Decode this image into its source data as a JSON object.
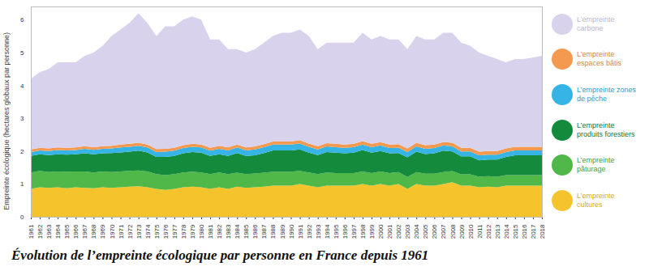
{
  "chart_data": {
    "type": "area",
    "title": "Évolution de l’empreinte écologique par personne en France depuis 1961",
    "y_label": "Empreinte écologique (hectares globaux par personne)",
    "stacked": true,
    "grid": false,
    "legend": "right",
    "x": [
      1961,
      1962,
      1963,
      1964,
      1965,
      1966,
      1967,
      1968,
      1969,
      1970,
      1971,
      1972,
      1973,
      1974,
      1975,
      1976,
      1977,
      1978,
      1979,
      1980,
      1981,
      1982,
      1983,
      1984,
      1985,
      1986,
      1987,
      1988,
      1989,
      1990,
      1991,
      1992,
      1993,
      1994,
      1995,
      1996,
      1997,
      1998,
      1999,
      2000,
      2001,
      2002,
      2003,
      2004,
      2005,
      2006,
      2007,
      2008,
      2009,
      2010,
      2011,
      2012,
      2013,
      2014,
      2015,
      2016,
      2017,
      2018
    ],
    "xlim": [
      1961,
      2018
    ],
    "xticks": [
      1961,
      1962,
      1963,
      1964,
      1965,
      1966,
      1967,
      1968,
      1969,
      1970,
      1971,
      1972,
      1973,
      1974,
      1975,
      1976,
      1977,
      1978,
      1979,
      1980,
      1981,
      1982,
      1983,
      1984,
      1985,
      1986,
      1987,
      1988,
      1989,
      1990,
      1991,
      1992,
      1993,
      1994,
      1995,
      1996,
      1997,
      1998,
      1999,
      2000,
      2001,
      2002,
      2003,
      2004,
      2005,
      2006,
      2007,
      2008,
      2009,
      2010,
      2011,
      2012,
      2013,
      2014,
      2015,
      2016,
      2017,
      2018
    ],
    "ylim": [
      0,
      6.4
    ],
    "yticks": [
      0,
      1,
      2,
      3,
      4,
      5,
      6
    ],
    "series": [
      {
        "name": "L’empreinte cultures",
        "color": "#f5c42c",
        "values": [
          0.85,
          0.9,
          0.88,
          0.9,
          0.87,
          0.9,
          0.88,
          0.87,
          0.9,
          0.88,
          0.9,
          0.92,
          0.93,
          0.9,
          0.85,
          0.82,
          0.85,
          0.9,
          0.92,
          0.9,
          0.85,
          0.9,
          0.85,
          0.92,
          0.88,
          0.9,
          0.92,
          0.95,
          0.95,
          0.95,
          1.0,
          0.95,
          0.9,
          0.95,
          0.95,
          0.95,
          0.95,
          1.0,
          0.95,
          1.0,
          0.95,
          1.0,
          0.85,
          1.0,
          0.95,
          0.95,
          1.0,
          1.05,
          0.95,
          0.95,
          0.9,
          0.92,
          0.9,
          0.95,
          0.95,
          0.95,
          0.95,
          0.95
        ]
      },
      {
        "name": "L’empreinte pâturage",
        "color": "#4fb848",
        "values": [
          0.5,
          0.5,
          0.48,
          0.48,
          0.5,
          0.48,
          0.5,
          0.48,
          0.48,
          0.48,
          0.48,
          0.48,
          0.48,
          0.48,
          0.45,
          0.45,
          0.45,
          0.45,
          0.45,
          0.45,
          0.45,
          0.45,
          0.45,
          0.42,
          0.42,
          0.42,
          0.42,
          0.42,
          0.42,
          0.42,
          0.4,
          0.4,
          0.4,
          0.4,
          0.38,
          0.38,
          0.38,
          0.38,
          0.38,
          0.38,
          0.38,
          0.36,
          0.36,
          0.36,
          0.36,
          0.36,
          0.36,
          0.34,
          0.34,
          0.34,
          0.32,
          0.32,
          0.32,
          0.32,
          0.32,
          0.32,
          0.32,
          0.32
        ]
      },
      {
        "name": "L’empreinte produits forestiers",
        "color": "#138a3c",
        "values": [
          0.5,
          0.5,
          0.52,
          0.52,
          0.52,
          0.52,
          0.55,
          0.55,
          0.55,
          0.58,
          0.58,
          0.58,
          0.6,
          0.58,
          0.52,
          0.55,
          0.55,
          0.58,
          0.6,
          0.6,
          0.55,
          0.55,
          0.55,
          0.6,
          0.55,
          0.55,
          0.6,
          0.65,
          0.65,
          0.65,
          0.65,
          0.6,
          0.58,
          0.62,
          0.62,
          0.6,
          0.62,
          0.65,
          0.62,
          0.62,
          0.6,
          0.58,
          0.6,
          0.62,
          0.6,
          0.62,
          0.65,
          0.6,
          0.55,
          0.55,
          0.5,
          0.5,
          0.52,
          0.55,
          0.6,
          0.6,
          0.6,
          0.6
        ]
      },
      {
        "name": "L’empreinte zones de pêche",
        "color": "#36b4e5",
        "values": [
          0.12,
          0.12,
          0.12,
          0.13,
          0.13,
          0.13,
          0.14,
          0.14,
          0.14,
          0.14,
          0.15,
          0.15,
          0.15,
          0.15,
          0.15,
          0.16,
          0.16,
          0.16,
          0.16,
          0.16,
          0.16,
          0.17,
          0.17,
          0.17,
          0.17,
          0.18,
          0.18,
          0.18,
          0.18,
          0.18,
          0.18,
          0.18,
          0.17,
          0.17,
          0.17,
          0.17,
          0.17,
          0.17,
          0.17,
          0.17,
          0.16,
          0.16,
          0.16,
          0.16,
          0.16,
          0.16,
          0.16,
          0.15,
          0.15,
          0.15,
          0.15,
          0.15,
          0.15,
          0.15,
          0.15,
          0.15,
          0.15,
          0.15
        ]
      },
      {
        "name": "L’empreinte espaces bâtis",
        "color": "#f49a50",
        "values": [
          0.08,
          0.08,
          0.08,
          0.08,
          0.08,
          0.08,
          0.08,
          0.08,
          0.08,
          0.08,
          0.09,
          0.09,
          0.09,
          0.09,
          0.09,
          0.09,
          0.09,
          0.09,
          0.09,
          0.09,
          0.09,
          0.09,
          0.09,
          0.09,
          0.09,
          0.09,
          0.09,
          0.09,
          0.09,
          0.09,
          0.1,
          0.1,
          0.1,
          0.1,
          0.1,
          0.1,
          0.1,
          0.1,
          0.1,
          0.1,
          0.11,
          0.11,
          0.11,
          0.11,
          0.11,
          0.11,
          0.11,
          0.11,
          0.11,
          0.11,
          0.11,
          0.11,
          0.11,
          0.11,
          0.11,
          0.11,
          0.11,
          0.11
        ]
      },
      {
        "name": "L’empreinte carbone",
        "color": "#d9d2ec",
        "values": [
          2.15,
          2.3,
          2.42,
          2.59,
          2.6,
          2.59,
          2.75,
          2.88,
          3.05,
          3.34,
          3.5,
          3.68,
          3.95,
          3.7,
          3.44,
          3.73,
          3.7,
          3.82,
          3.88,
          3.8,
          3.3,
          3.24,
          2.99,
          2.9,
          2.89,
          2.96,
          3.09,
          3.21,
          3.31,
          3.31,
          3.37,
          3.27,
          2.95,
          3.06,
          3.08,
          3.1,
          3.08,
          3.3,
          3.18,
          3.23,
          3.2,
          3.19,
          3.02,
          3.25,
          3.22,
          3.2,
          3.32,
          3.35,
          3.2,
          3.1,
          3.02,
          2.9,
          2.8,
          2.62,
          2.67,
          2.67,
          2.72,
          2.77
        ]
      }
    ]
  }
}
